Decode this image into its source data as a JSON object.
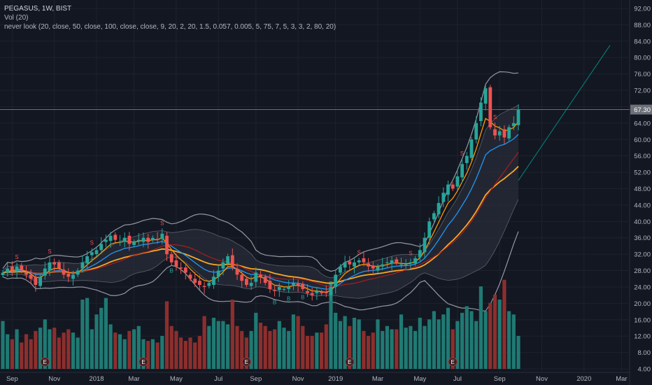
{
  "legend": {
    "symbol": "PEGASUS, 1W, BIST",
    "volume": "Vol (20)",
    "indicator": "never look (20, close, 50, close, 100, close, close, 9, 20, 2, 20, 1.5, 0.057, 0.005, 5, 75, 7, 5, 3, 3, 2, 80, 20)"
  },
  "colors": {
    "background": "#131722",
    "up": "#26a69a",
    "down": "#ef5350",
    "vol_up": "#1f7a73",
    "vol_down": "#8c2f2d",
    "ma_orange": "#ff9800",
    "ma_blue": "#2196f3",
    "ma_red": "#b71c1c",
    "band": "#9598a1",
    "grid": "#1e222d",
    "trend": "#00897b",
    "price_tag": "#6d7078"
  },
  "chart_data": {
    "type": "candlestick",
    "interval": "1W",
    "last_price": "67.30",
    "ylim": [
      4,
      92
    ],
    "y_ticks": [
      "92.00",
      "88.00",
      "84.00",
      "80.00",
      "76.00",
      "72.00",
      "68.00",
      "64.00",
      "60.00",
      "56.00",
      "52.00",
      "48.00",
      "44.00",
      "40.00",
      "36.00",
      "32.00",
      "28.00",
      "24.00",
      "20.00",
      "16.00",
      "12.00",
      "8.00",
      "4.00"
    ],
    "x_ticks": [
      "Sep",
      "Nov",
      "2018",
      "Mar",
      "May",
      "Jul",
      "Sep",
      "Nov",
      "2019",
      "Mar",
      "May",
      "Jul",
      "Sep",
      "Nov",
      "2020",
      "Mar"
    ],
    "closes": [
      27.5,
      28.5,
      28.0,
      29.0,
      28.0,
      27.0,
      26.0,
      24.5,
      26.5,
      28.5,
      30.0,
      29.5,
      28.5,
      27.0,
      26.5,
      27.0,
      28.0,
      30.0,
      31.5,
      32.5,
      33.0,
      34.5,
      35.5,
      36.5,
      35.5,
      35.0,
      36.0,
      34.5,
      35.0,
      35.5,
      36.0,
      35.0,
      36.0,
      35.5,
      37.0,
      32.0,
      30.0,
      29.0,
      28.5,
      27.5,
      26.0,
      25.0,
      24.5,
      24.0,
      25.0,
      26.5,
      28.0,
      30.0,
      31.5,
      29.0,
      27.0,
      25.5,
      24.5,
      25.0,
      27.5,
      26.5,
      25.0,
      23.5,
      23.0,
      24.0,
      23.5,
      24.0,
      25.0,
      24.5,
      23.5,
      22.5,
      22.0,
      23.0,
      22.5,
      22.5,
      24.0,
      27.0,
      29.0,
      30.0,
      29.5,
      30.0,
      30.5,
      30.0,
      29.0,
      28.5,
      29.0,
      29.5,
      30.0,
      30.5,
      30.0,
      29.5,
      29.5,
      30.0,
      31.0,
      33.0,
      36.0,
      40.0,
      42.0,
      44.5,
      47.0,
      49.0,
      48.0,
      51.0,
      54.0,
      56.0,
      60.0,
      64.0,
      69.0,
      72.5,
      63.0,
      61.0,
      62.0,
      60.5,
      63.0,
      64.0,
      67.3
    ],
    "volumes": [
      14.5,
      10.5,
      9.0,
      12.0,
      8.0,
      10.5,
      9.0,
      11.5,
      12.5,
      15.0,
      12.0,
      12.5,
      9.5,
      11.0,
      12.0,
      11.0,
      9.5,
      21.0,
      21.5,
      12.0,
      16.5,
      18.5,
      21.5,
      13.5,
      11.0,
      10.5,
      9.0,
      11.5,
      12.0,
      13.0,
      9.0,
      8.5,
      9.0,
      8.0,
      10.0,
      20.5,
      13.0,
      11.5,
      9.5,
      8.5,
      9.5,
      8.0,
      10.0,
      16.0,
      13.0,
      15.5,
      14.5,
      14.5,
      13.5,
      21.0,
      13.0,
      11.5,
      9.5,
      11.5,
      17.0,
      14.0,
      13.0,
      11.5,
      12.0,
      14.5,
      12.5,
      11.5,
      16.5,
      16.0,
      13.0,
      10.0,
      10.0,
      11.0,
      11.0,
      13.5,
      26.5,
      17.0,
      14.5,
      16.0,
      13.0,
      15.5,
      15.0,
      11.5,
      10.0,
      11.0,
      15.0,
      11.5,
      13.0,
      12.0,
      12.0,
      16.5,
      12.5,
      13.0,
      11.5,
      15.5,
      13.0,
      15.0,
      17.5,
      15.0,
      16.5,
      18.5,
      12.0,
      14.5,
      17.0,
      19.0,
      17.5,
      14.5,
      25.0,
      17.5,
      20.0,
      22.5,
      21.0,
      27.0,
      17.5,
      16.5,
      10.0
    ],
    "earnings_at": [
      9,
      30,
      52,
      74,
      96
    ],
    "series": [
      {
        "name": "ma20"
      },
      {
        "name": "ma50"
      },
      {
        "name": "ma100"
      }
    ]
  }
}
